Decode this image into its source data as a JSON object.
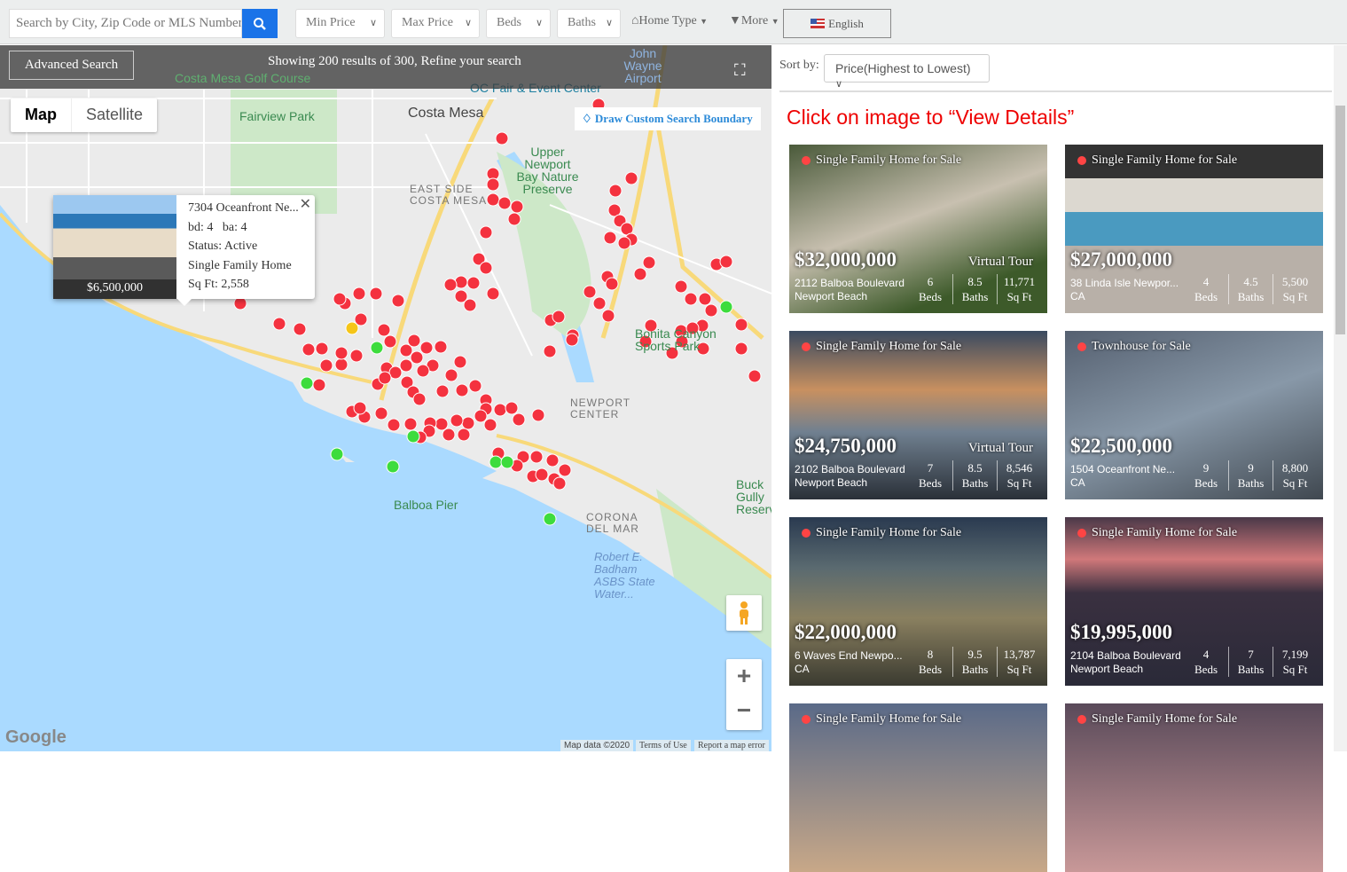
{
  "topbar": {
    "search_placeholder": "Search by City, Zip Code or MLS Number",
    "min_price": "Min Price",
    "max_price": "Max Price",
    "beds": "Beds",
    "baths": "Baths",
    "home_type": "Home Type",
    "more": "More",
    "language": "English",
    "accent": "#1a73e8"
  },
  "map": {
    "advanced_search": "Advanced Search",
    "showing": "Showing 200 results of 300, Refine your search",
    "map_tab": "Map",
    "satellite_tab": "Satellite",
    "draw_boundary": "Draw Custom Search Boundary",
    "labels": [
      "Costa Mesa Golf Course",
      "OC Fair & Event Center",
      "Fairview Park",
      "Costa Mesa",
      "Upper Newport Bay Nature Preserve",
      "EAST SIDE COSTA MESA",
      "Bonita Canyon Sports Park",
      "NEWPORT CENTER",
      "Balboa Pier",
      "CORONA DEL MAR",
      "Robert E. Badham ASBS State Water...",
      "John Wayne Airport",
      "Buck Gully Reserve"
    ],
    "popup": {
      "address": "7304 Oceanfront Ne...",
      "beds_baths": "bd: 4   ba: 4",
      "status": "Status: Active",
      "type": "Single Family Home",
      "sqft": "Sq Ft: 2,558",
      "price": "$6,500,000"
    },
    "footer": {
      "map_data": "Map data ©2020",
      "terms": "Terms of Use",
      "report": "Report a map error",
      "logo": "Google"
    },
    "marker_colors": {
      "default": "#f4323f",
      "selected": "#f5c518",
      "new": "#3ddc3d"
    }
  },
  "listings": {
    "sort_label": "Sort by:",
    "sort_value": "Price(Highest to Lowest)",
    "hint": "Click on image to “View Details”",
    "cards": [
      {
        "type": "Single Family Home for Sale",
        "price": "$32,000,000",
        "virtual_tour": "Virtual Tour",
        "addr1": "2112 Balboa Boulevard",
        "addr2": "Newport Beach",
        "beds": "6",
        "baths": "8.5",
        "sqft": "11,771"
      },
      {
        "type": "Single Family Home for Sale",
        "price": "$27,000,000",
        "virtual_tour": "",
        "addr1": "38 Linda Isle Newpor...",
        "addr2": "CA",
        "beds": "4",
        "baths": "4.5",
        "sqft": "5,500"
      },
      {
        "type": "Single Family Home for Sale",
        "price": "$24,750,000",
        "virtual_tour": "Virtual Tour",
        "addr1": "2102 Balboa Boulevard",
        "addr2": "Newport Beach",
        "beds": "7",
        "baths": "8.5",
        "sqft": "8,546"
      },
      {
        "type": "Townhouse for Sale",
        "price": "$22,500,000",
        "virtual_tour": "",
        "addr1": "1504 Oceanfront Ne...",
        "addr2": "CA",
        "beds": "9",
        "baths": "9",
        "sqft": "8,800"
      },
      {
        "type": "Single Family Home for Sale",
        "price": "$22,000,000",
        "virtual_tour": "",
        "addr1": "6 Waves End Newpo...",
        "addr2": "CA",
        "beds": "8",
        "baths": "9.5",
        "sqft": "13,787"
      },
      {
        "type": "Single Family Home for Sale",
        "price": "$19,995,000",
        "virtual_tour": "",
        "addr1": "2104 Balboa Boulevard",
        "addr2": "Newport Beach",
        "beds": "4",
        "baths": "7",
        "sqft": "7,199"
      },
      {
        "type": "Single Family Home for Sale"
      },
      {
        "type": "Single Family Home for Sale"
      }
    ],
    "beds_label": "Beds",
    "baths_label": "Baths",
    "sqft_label": "Sq Ft"
  }
}
